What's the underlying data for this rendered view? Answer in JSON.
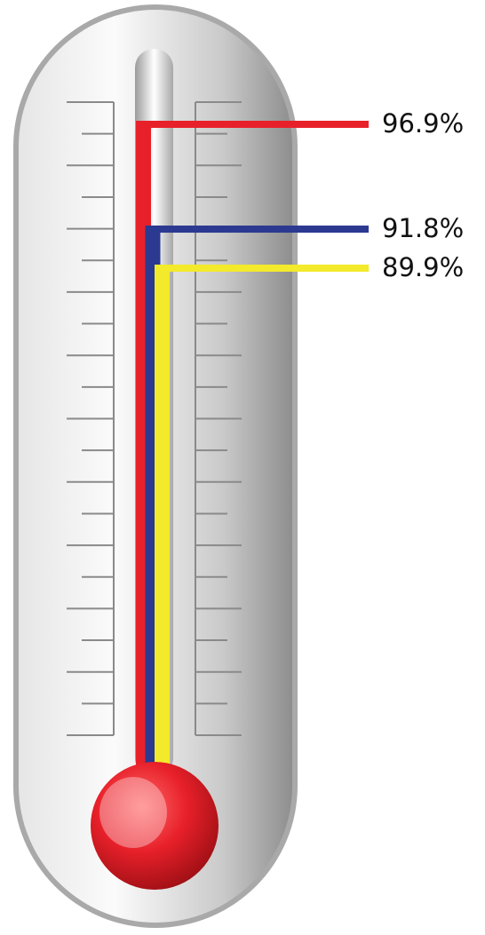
{
  "chart_data": {
    "type": "thermometer",
    "values": [
      96.9,
      91.8,
      89.9
    ],
    "value_labels": [
      "96.9%",
      "91.8%",
      "89.9%"
    ],
    "colors": [
      "#e8202a",
      "#2b3990",
      "#f2ea2a"
    ]
  }
}
